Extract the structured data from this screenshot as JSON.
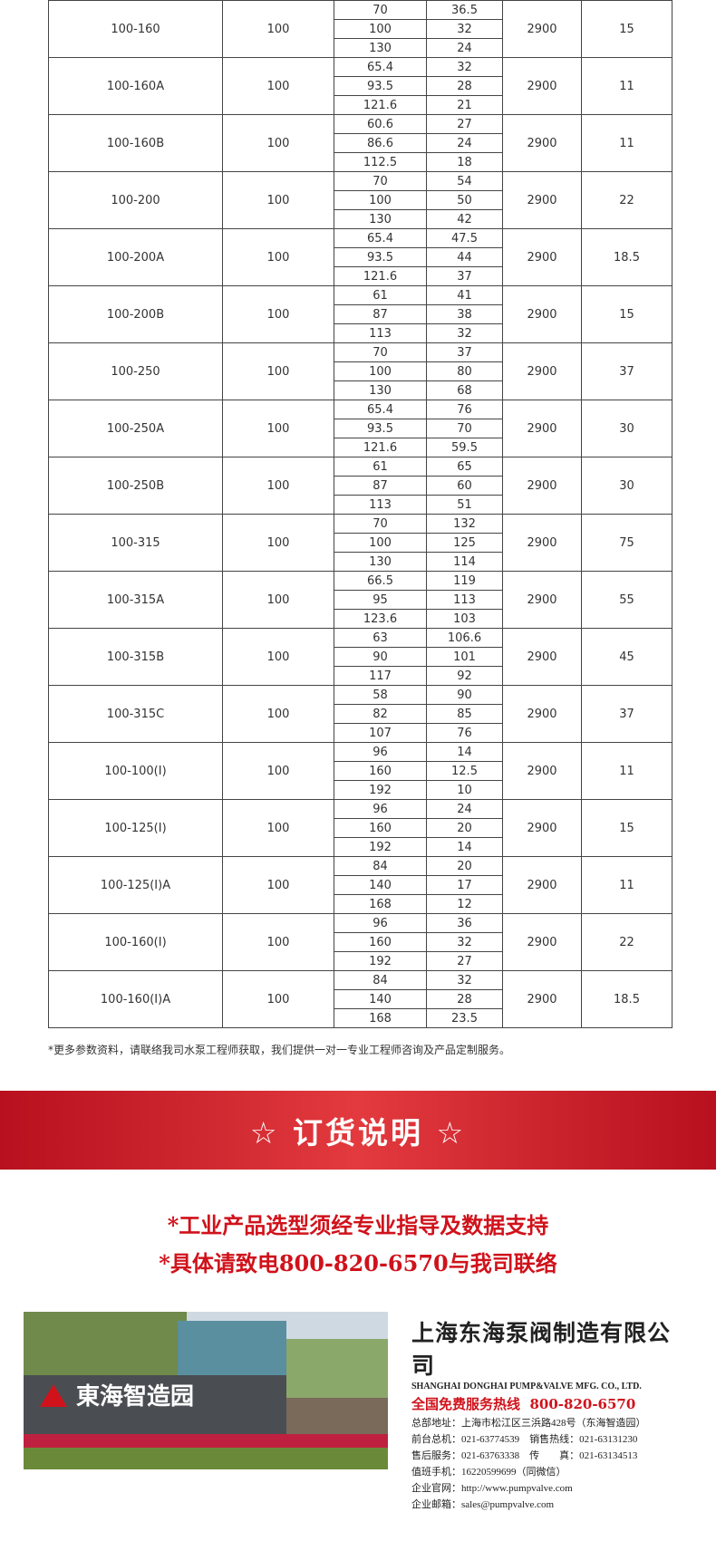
{
  "table": {
    "rows": [
      {
        "model": "100-160",
        "diameter": "100",
        "flow": [
          "70",
          "100",
          "130"
        ],
        "head": [
          "36.5",
          "32",
          "24"
        ],
        "speed": "2900",
        "power": "15"
      },
      {
        "model": "100-160A",
        "diameter": "100",
        "flow": [
          "65.4",
          "93.5",
          "121.6"
        ],
        "head": [
          "32",
          "28",
          "21"
        ],
        "speed": "2900",
        "power": "11"
      },
      {
        "model": "100-160B",
        "diameter": "100",
        "flow": [
          "60.6",
          "86.6",
          "112.5"
        ],
        "head": [
          "27",
          "24",
          "18"
        ],
        "speed": "2900",
        "power": "11"
      },
      {
        "model": "100-200",
        "diameter": "100",
        "flow": [
          "70",
          "100",
          "130"
        ],
        "head": [
          "54",
          "50",
          "42"
        ],
        "speed": "2900",
        "power": "22"
      },
      {
        "model": "100-200A",
        "diameter": "100",
        "flow": [
          "65.4",
          "93.5",
          "121.6"
        ],
        "head": [
          "47.5",
          "44",
          "37"
        ],
        "speed": "2900",
        "power": "18.5"
      },
      {
        "model": "100-200B",
        "diameter": "100",
        "flow": [
          "61",
          "87",
          "113"
        ],
        "head": [
          "41",
          "38",
          "32"
        ],
        "speed": "2900",
        "power": "15"
      },
      {
        "model": "100-250",
        "diameter": "100",
        "flow": [
          "70",
          "100",
          "130"
        ],
        "head": [
          "37",
          "80",
          "68"
        ],
        "speed": "2900",
        "power": "37"
      },
      {
        "model": "100-250A",
        "diameter": "100",
        "flow": [
          "65.4",
          "93.5",
          "121.6"
        ],
        "head": [
          "76",
          "70",
          "59.5"
        ],
        "speed": "2900",
        "power": "30"
      },
      {
        "model": "100-250B",
        "diameter": "100",
        "flow": [
          "61",
          "87",
          "113"
        ],
        "head": [
          "65",
          "60",
          "51"
        ],
        "speed": "2900",
        "power": "30"
      },
      {
        "model": "100-315",
        "diameter": "100",
        "flow": [
          "70",
          "100",
          "130"
        ],
        "head": [
          "132",
          "125",
          "114"
        ],
        "speed": "2900",
        "power": "75"
      },
      {
        "model": "100-315A",
        "diameter": "100",
        "flow": [
          "66.5",
          "95",
          "123.6"
        ],
        "head": [
          "119",
          "113",
          "103"
        ],
        "speed": "2900",
        "power": "55"
      },
      {
        "model": "100-315B",
        "diameter": "100",
        "flow": [
          "63",
          "90",
          "117"
        ],
        "head": [
          "106.6",
          "101",
          "92"
        ],
        "speed": "2900",
        "power": "45"
      },
      {
        "model": "100-315C",
        "diameter": "100",
        "flow": [
          "58",
          "82",
          "107"
        ],
        "head": [
          "90",
          "85",
          "76"
        ],
        "speed": "2900",
        "power": "37"
      },
      {
        "model": "100-100(I)",
        "diameter": "100",
        "flow": [
          "96",
          "160",
          "192"
        ],
        "head": [
          "14",
          "12.5",
          "10"
        ],
        "speed": "2900",
        "power": "11"
      },
      {
        "model": "100-125(I)",
        "diameter": "100",
        "flow": [
          "96",
          "160",
          "192"
        ],
        "head": [
          "24",
          "20",
          "14"
        ],
        "speed": "2900",
        "power": "15"
      },
      {
        "model": "100-125(I)A",
        "diameter": "100",
        "flow": [
          "84",
          "140",
          "168"
        ],
        "head": [
          "20",
          "17",
          "12"
        ],
        "speed": "2900",
        "power": "11"
      },
      {
        "model": "100-160(I)",
        "diameter": "100",
        "flow": [
          "96",
          "160",
          "192"
        ],
        "head": [
          "36",
          "32",
          "27"
        ],
        "speed": "2900",
        "power": "22"
      },
      {
        "model": "100-160(I)A",
        "diameter": "100",
        "flow": [
          "84",
          "140",
          "168"
        ],
        "head": [
          "32",
          "28",
          "23.5"
        ],
        "speed": "2900",
        "power": "18.5"
      }
    ]
  },
  "footnote": "*更多参数资料，请联络我司水泵工程师获取，我们提供一对一专业工程师咨询及产品定制服务。",
  "banner": "☆ 订货说明 ☆",
  "notes": [
    "*工业产品选型须经专业指导及数据支持",
    "*具体请致电800-820-6570与我司联络"
  ],
  "photo": {
    "sign": "東海智造园"
  },
  "company": {
    "name": "上海东海泵阀制造有限公司",
    "english": "SHANGHAI DONGHAI PUMP&VALVE MFG. CO., LTD.",
    "hotline_label": "全国免费服务热线",
    "hotline": "800-820-6570",
    "lines": [
      "总部地址：上海市松江区三浜路428号（东海智造园）",
      "前台总机：021-63774539　销售热线：021-63131230",
      "售后服务：021-63763338　传　　真：021-63134513",
      "值班手机：16220599699（同微信）",
      "企业官网：http://www.pumpvalve.com",
      "企业邮箱：sales@pumpvalve.com"
    ]
  }
}
